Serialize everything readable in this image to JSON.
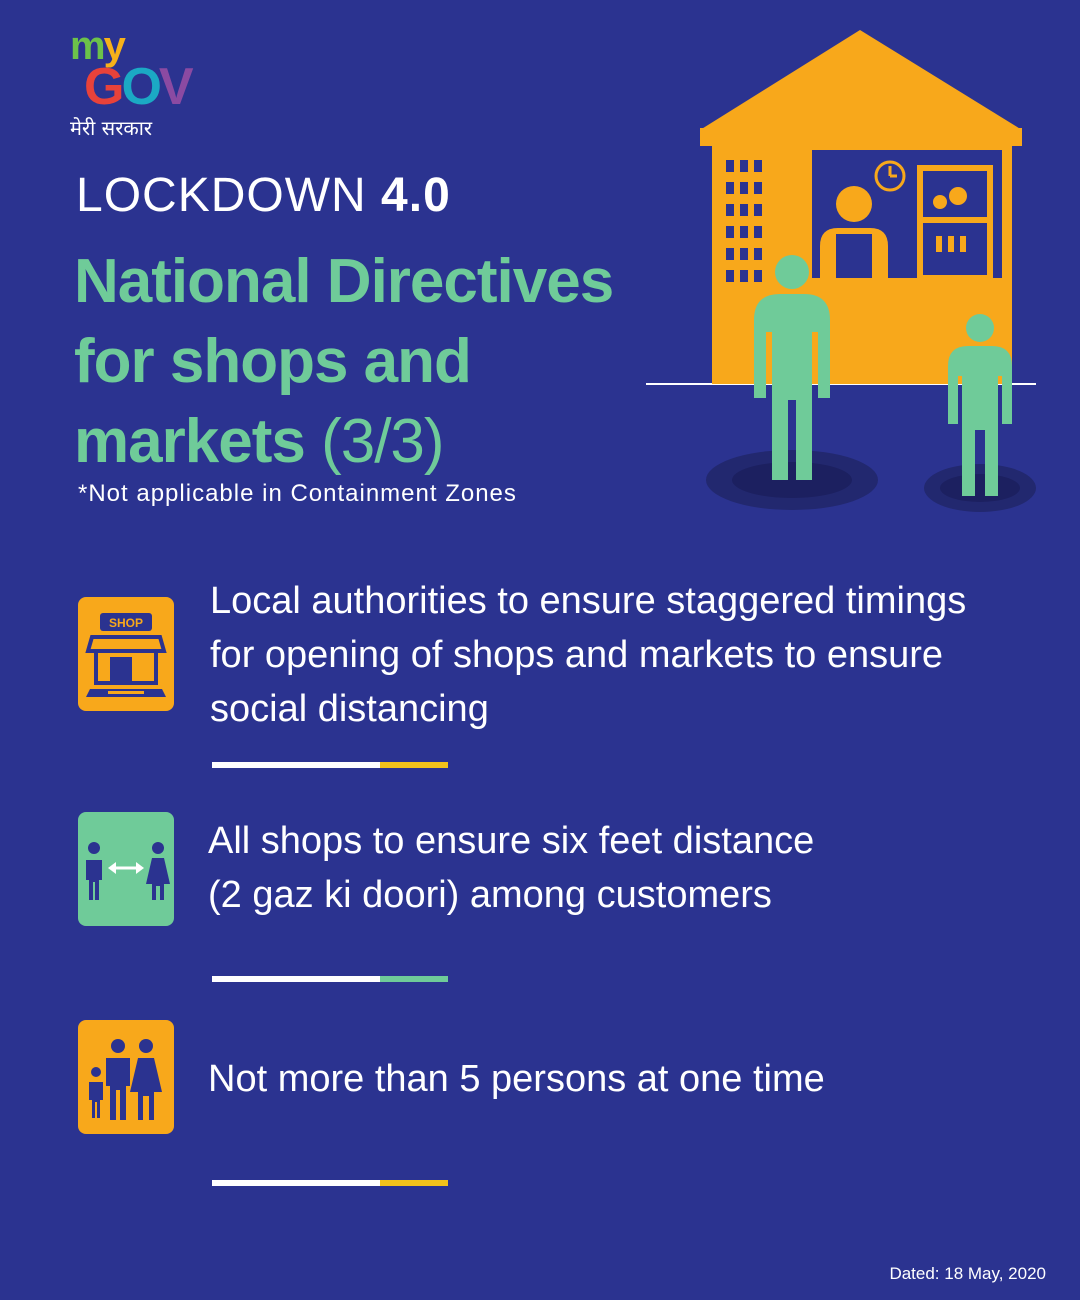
{
  "logo": {
    "my": [
      "m",
      "y"
    ],
    "gov": [
      "G",
      "O",
      "V"
    ],
    "tagline": "मेरी सरकार"
  },
  "header": {
    "lockdown_light": "LOCKDOWN",
    "lockdown_bold": "4.0",
    "title_line1": "National Directives",
    "title_line2": "for shops and",
    "title_line3": "markets",
    "title_page": "(3/3)",
    "note": "*Not applicable in Containment Zones"
  },
  "items": [
    {
      "text_line1": "Local authorities to ensure staggered timings",
      "text_line2": "for opening of shops and markets to ensure",
      "text_line3": "social distancing",
      "icon": "shop-icon",
      "icon_label": "SHOP",
      "icon_color": "#f8a81b",
      "rule_color": "#f2c21b"
    },
    {
      "text_line1": "All shops to ensure six feet distance",
      "text_line2": "(2 gaz ki doori) among customers",
      "icon": "social-distance-icon",
      "icon_color": "#6fcb99",
      "rule_color": "#6fcb99"
    },
    {
      "text_line1": "Not more than 5 persons at one time",
      "icon": "family-icon",
      "icon_color": "#f8a81b",
      "rule_color": "#f2c21b"
    }
  ],
  "footer": {
    "dated": "Dated: 18 May, 2020"
  },
  "colors": {
    "background": "#2b3390",
    "accent_green": "#6fcb99",
    "accent_yellow": "#f8a81b"
  }
}
